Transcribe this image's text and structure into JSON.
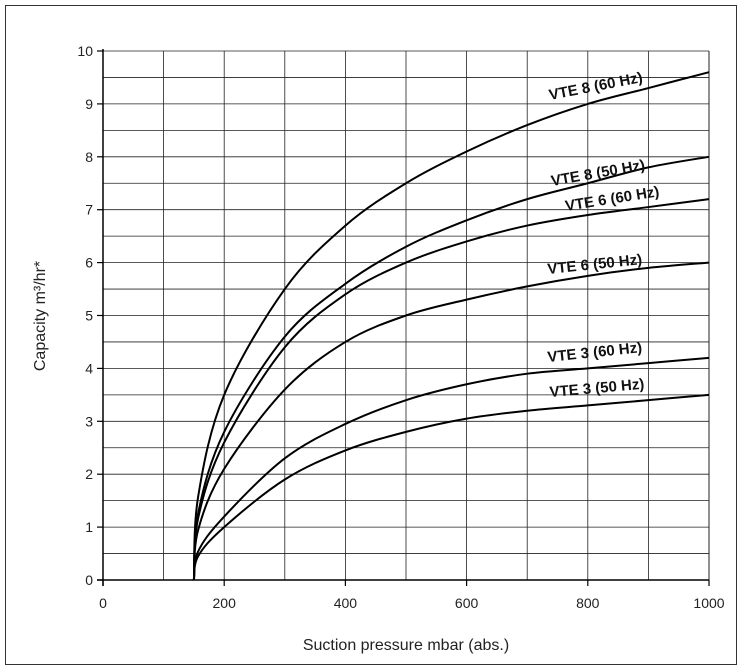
{
  "chart_data": {
    "type": "line",
    "title": "",
    "xlabel": "Suction pressure mbar (abs.)",
    "ylabel": "Capacity m³/hr*",
    "xlim": [
      0,
      1000
    ],
    "ylim": [
      0,
      10
    ],
    "x_ticks": [
      "0",
      "200",
      "400",
      "600",
      "800",
      "1000"
    ],
    "y_ticks": [
      "0",
      "1",
      "2",
      "3",
      "4",
      "5",
      "6",
      "7",
      "8",
      "9",
      "10"
    ],
    "grid": true,
    "series": [
      {
        "name": "VTE 8 (60 Hz)",
        "x": [
          150,
          200,
          300,
          400,
          500,
          600,
          700,
          800,
          900,
          1000
        ],
        "y": [
          0,
          3.5,
          5.5,
          6.7,
          7.5,
          8.1,
          8.6,
          9.0,
          9.3,
          9.6
        ]
      },
      {
        "name": "VTE 8 (50 Hz)",
        "x": [
          150,
          200,
          300,
          400,
          500,
          600,
          700,
          800,
          900,
          1000
        ],
        "y": [
          0,
          2.8,
          4.6,
          5.6,
          6.3,
          6.8,
          7.2,
          7.5,
          7.8,
          8.0
        ]
      },
      {
        "name": "VTE 6 (60 Hz)",
        "x": [
          150,
          200,
          300,
          400,
          500,
          600,
          700,
          800,
          900,
          1000
        ],
        "y": [
          0,
          2.6,
          4.4,
          5.4,
          6.0,
          6.4,
          6.7,
          6.9,
          7.05,
          7.2
        ]
      },
      {
        "name": "VTE 6 (50 Hz)",
        "x": [
          150,
          200,
          300,
          400,
          500,
          600,
          700,
          800,
          900,
          1000
        ],
        "y": [
          0,
          2.1,
          3.6,
          4.5,
          5.0,
          5.3,
          5.55,
          5.75,
          5.9,
          6.0
        ]
      },
      {
        "name": "VTE 3 (60 Hz)",
        "x": [
          150,
          200,
          300,
          400,
          500,
          600,
          700,
          800,
          900,
          1000
        ],
        "y": [
          0,
          1.2,
          2.3,
          2.95,
          3.4,
          3.7,
          3.9,
          4.0,
          4.1,
          4.2
        ]
      },
      {
        "name": "VTE 3 (50 Hz)",
        "x": [
          150,
          200,
          300,
          400,
          500,
          600,
          700,
          800,
          900,
          1000
        ],
        "y": [
          0,
          1.0,
          1.9,
          2.45,
          2.8,
          3.05,
          3.2,
          3.3,
          3.4,
          3.5
        ]
      }
    ]
  }
}
